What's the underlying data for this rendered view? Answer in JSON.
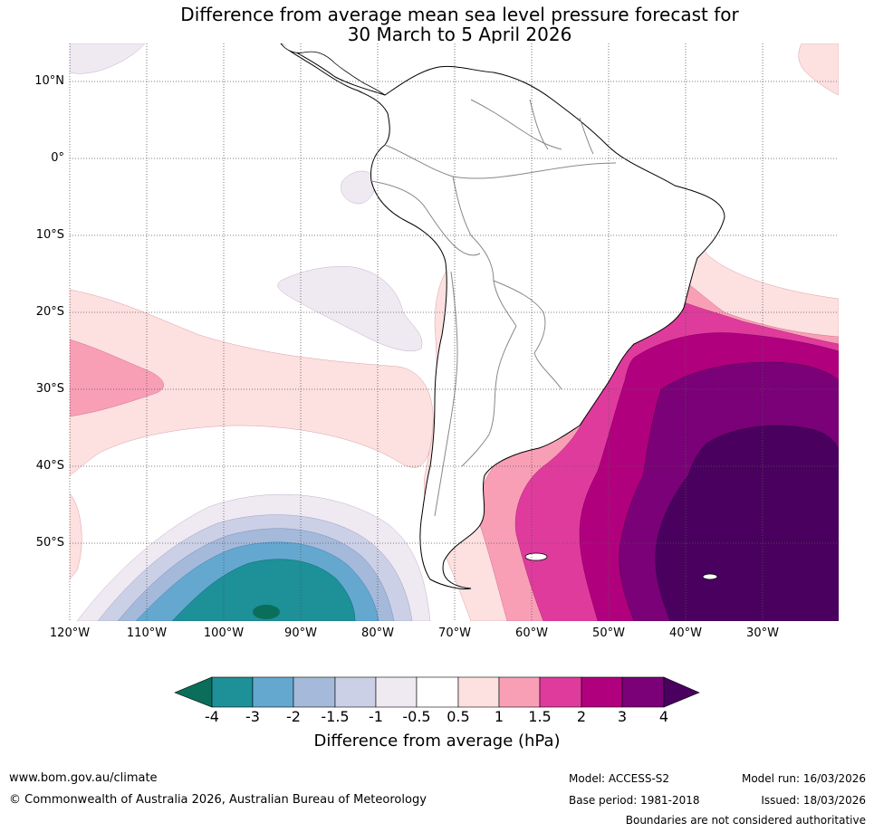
{
  "title": {
    "line1": "Difference from average mean sea level pressure forecast for",
    "line2": "30 March to 5 April 2026"
  },
  "axes": {
    "lat_labels": [
      "10°N",
      "0°",
      "10°S",
      "20°S",
      "30°S",
      "40°S",
      "50°S"
    ],
    "lon_labels": [
      "120°W",
      "110°W",
      "100°W",
      "90°W",
      "80°W",
      "70°W",
      "60°W",
      "50°W",
      "40°W",
      "30°W"
    ]
  },
  "colorbar": {
    "ticks": [
      "-4",
      "-3",
      "-2",
      "-1.5",
      "-1",
      "-0.5",
      "0.5",
      "1",
      "1.5",
      "2",
      "3",
      "4"
    ],
    "label": "Difference from average (hPa)",
    "colors": [
      "#0b6e5a",
      "#1d9098",
      "#64a8d0",
      "#a5b9da",
      "#ccd0e6",
      "#efe9f2",
      "#ffffff",
      "#fde0e0",
      "#f89fb6",
      "#df3b9d",
      "#b1007e",
      "#7a0177",
      "#4a005f"
    ]
  },
  "footer": {
    "website": "www.bom.gov.au/climate",
    "copyright": "© Commonwealth of Australia 2026, Australian Bureau of Meteorology",
    "model": "Model: ACCESS-S2",
    "base_period": "Base period: 1981-2018",
    "model_run": "Model run: 16/03/2026",
    "issued": "Issued: 18/03/2026",
    "disclaimer": "Boundaries are not considered authoritative"
  }
}
